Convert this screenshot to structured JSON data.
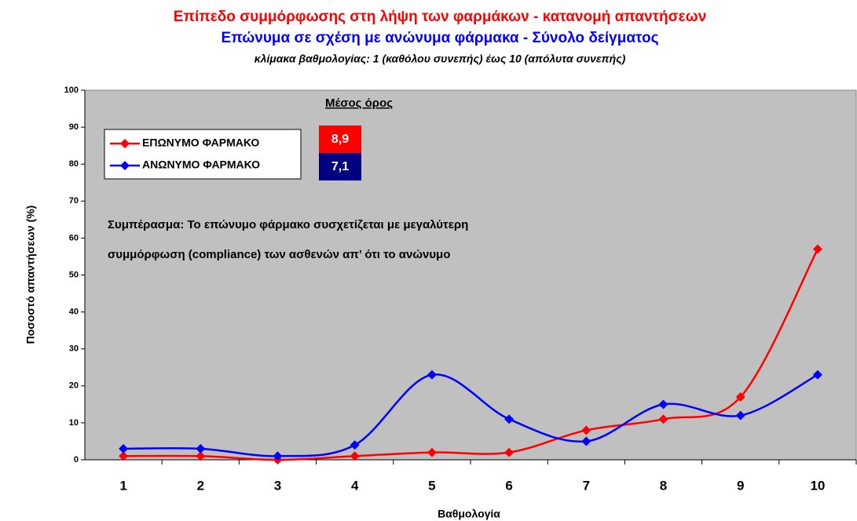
{
  "chart_data": {
    "type": "line",
    "title": "Επίπεδο συμμόρφωσης στη λήψη των φαρμάκων - κατανομή απαντήσεων",
    "subtitle": "Επώνυμα σε σχέση με ανώνυμα φάρμακα - Σύνολο δείγματος",
    "note": "κλίμακα βαθμολογίας: 1 (καθόλου συνεπής) έως 10 (απόλυτα συνεπής)",
    "x_label": "Βαθμολογία",
    "y_label": "Ποσοστό απαντήσεων (%)",
    "categories": [
      "1",
      "2",
      "3",
      "4",
      "5",
      "6",
      "7",
      "8",
      "9",
      "10"
    ],
    "series": [
      {
        "name": "ΕΠΩΝΥΜΟ ΦΑΡΜΑΚΟ",
        "color": "#ff0000",
        "mean_label": "8,9",
        "values": [
          1,
          1,
          0,
          1,
          2,
          2,
          8,
          11,
          17,
          57
        ]
      },
      {
        "name": "ΑΝΩΝΥΜΟ ΦΑΡΜΑΚΟ",
        "color": "#0000ff",
        "mean_label": "7,1",
        "values": [
          3,
          3,
          1,
          4,
          23,
          11,
          5,
          15,
          12,
          23
        ]
      }
    ],
    "mean_title": "Μέσος όρος",
    "mean_colors": [
      "#ff0000",
      "#000080"
    ],
    "annotation": [
      "Συμπέρασμα: Το επώνυμο φάρμακο συσχετίζεται με μεγαλύτερη",
      "συμμόρφωση (compliance) των ασθενών απ’ ότι το ανώνυμο"
    ],
    "ylim": [
      0,
      100
    ],
    "yticks": [
      0,
      10,
      20,
      30,
      40,
      50,
      60,
      70,
      80,
      90,
      100
    ],
    "grid": false,
    "smooth": true,
    "background": "#c0c0c0",
    "legend": "upper left"
  }
}
